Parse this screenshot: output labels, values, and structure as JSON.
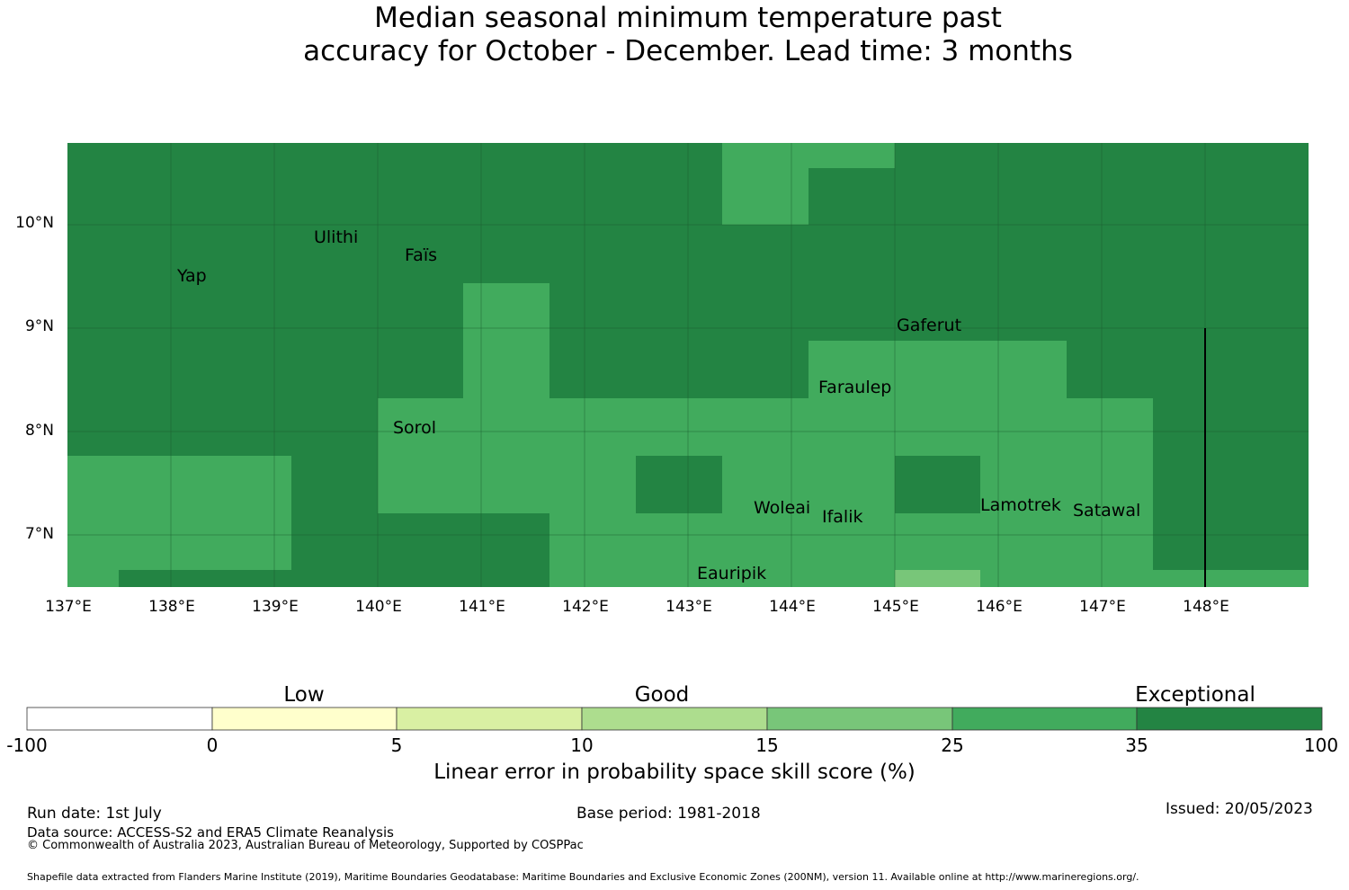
{
  "title": {
    "line1": "Median seasonal minimum temperature past",
    "line2": "accuracy for October - December. Lead time: 3 months"
  },
  "map": {
    "lat_labels": [
      "10°N",
      "9°N",
      "8°N",
      "7°N"
    ],
    "lon_labels": [
      "137°E",
      "138°E",
      "139°E",
      "140°E",
      "141°E",
      "142°E",
      "143°E",
      "144°E",
      "145°E",
      "146°E",
      "147°E",
      "148°E"
    ],
    "places": [
      {
        "name": "Ulithi"
      },
      {
        "name": "Faïs"
      },
      {
        "name": "Yap"
      },
      {
        "name": "Gaferut"
      },
      {
        "name": "Faraulep"
      },
      {
        "name": "Sorol"
      },
      {
        "name": "Woleai"
      },
      {
        "name": "Ifalik"
      },
      {
        "name": "Lamotrek"
      },
      {
        "name": "Satawal"
      },
      {
        "name": "Eauripik"
      }
    ],
    "colors": {
      "exceptional": "#238443",
      "good_high": "#41ab5d",
      "good_mid": "#78c679",
      "gridline": "#1a5a2e"
    }
  },
  "colorbar": {
    "category_labels": [
      "Low",
      "Good",
      "Exceptional"
    ],
    "tick_labels": [
      "-100",
      "0",
      "5",
      "10",
      "15",
      "25",
      "35",
      "100"
    ],
    "colors": [
      "#ffffff",
      "#ffffcc",
      "#d9f0a3",
      "#addd8e",
      "#78c679",
      "#41ab5d",
      "#238443"
    ],
    "title": "Linear error in probability space skill score (%)"
  },
  "footer": {
    "run_date": "Run date: 1st July",
    "base_period": "Base period: 1981-2018",
    "issued": "Issued: 20/05/2023",
    "data_source": "Data source: ACCESS-S2 and ERA5 Climate Reanalysis",
    "copyright": "© Commonwealth of Australia 2023, Australian Bureau of Meteorology, Supported by COSPPac",
    "shapefile": "Shapefile data extracted from Flanders Marine Institute (2019), Maritime Boundaries Geodatabase: Maritime Boundaries and Exclusive Economic Zones (200NM), version 11. Available online at http://www.marineregions.org/."
  }
}
